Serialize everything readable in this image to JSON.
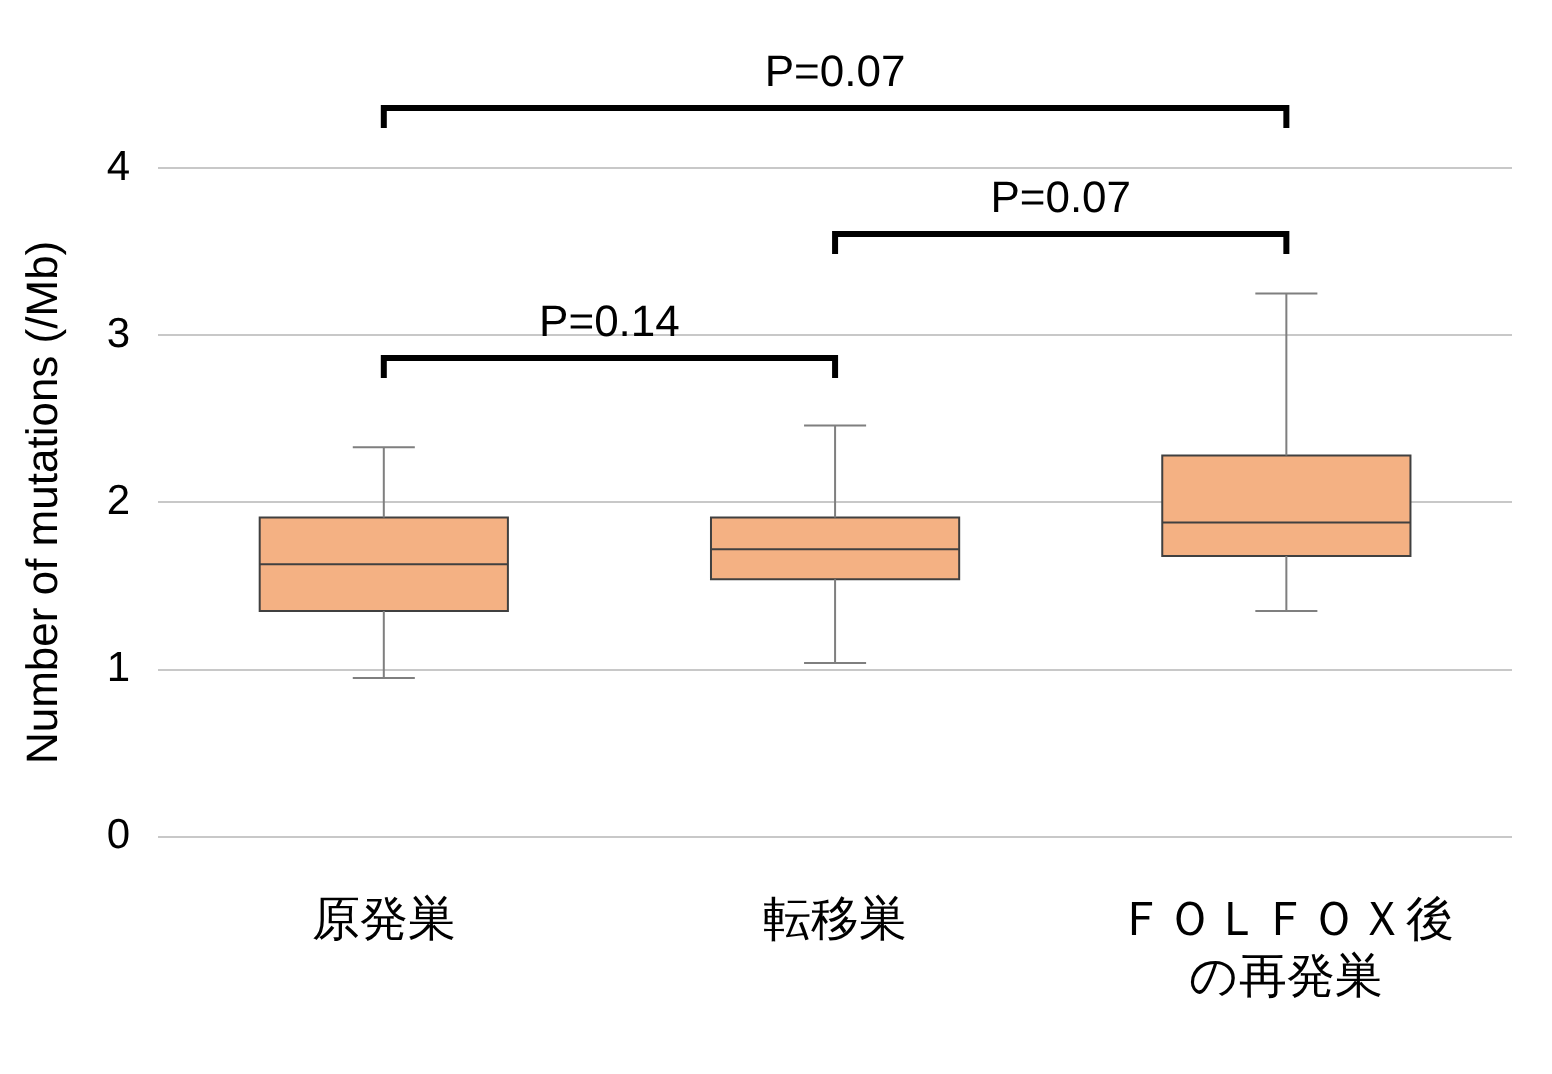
{
  "chart_data": {
    "type": "box",
    "ylabel": "Number of mutations (/Mb)",
    "categories": [
      "原発巣",
      "転移巣",
      "ＦＯＬＦＯＸ後の再発巣"
    ],
    "color": "#f4b183",
    "boxes": [
      {
        "low": 0.95,
        "q1": 1.35,
        "median": 1.63,
        "q3": 1.91,
        "high": 2.33
      },
      {
        "low": 1.04,
        "q1": 1.54,
        "median": 1.72,
        "q3": 1.91,
        "high": 2.46
      },
      {
        "low": 1.35,
        "q1": 1.68,
        "median": 1.88,
        "q3": 2.28,
        "high": 3.25
      }
    ],
    "ylim": [
      0,
      4
    ],
    "yticks": [
      0,
      1,
      2,
      3,
      4
    ],
    "grid": "y",
    "legend": false,
    "annotations": [
      "P=0.14",
      "P=0.07",
      "P=0.07"
    ]
  }
}
